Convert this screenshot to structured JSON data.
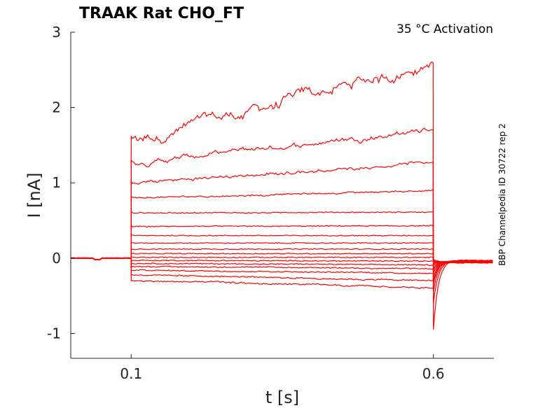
{
  "chart_data": {
    "type": "line",
    "title": "TRAAK  Rat  CHO_FT",
    "annotation": "35 °C  Activation",
    "side_label": "BBP Channelpedia ID 30722 rep 2",
    "xlabel": "t [s]",
    "ylabel": "I [nA]",
    "xlim": [
      0.0,
      0.7
    ],
    "ylim": [
      -1.33,
      3.0
    ],
    "x_ticks": [
      0.1,
      0.6
    ],
    "x_tick_labels": [
      "0.1",
      "0.6"
    ],
    "y_ticks": [
      -1,
      0,
      1,
      2,
      3
    ],
    "y_tick_labels": [
      "-1",
      "0",
      "1",
      "2",
      "3"
    ],
    "grid": false,
    "line_color": "#ff0000",
    "pulse_start": 0.1,
    "pulse_end": 0.6,
    "traces": [
      {
        "plateau_start": 1.58,
        "plateau_end": 2.6,
        "onset_peak": 1.62,
        "tail_min": -0.95
      },
      {
        "plateau_start": 1.27,
        "plateau_end": 1.72,
        "onset_peak": 1.3,
        "tail_min": -0.6
      },
      {
        "plateau_start": 1.0,
        "plateau_end": 1.28,
        "onset_peak": 1.02,
        "tail_min": -0.45
      },
      {
        "plateau_start": 0.8,
        "plateau_end": 0.9,
        "onset_peak": 0.82,
        "tail_min": -0.35
      },
      {
        "plateau_start": 0.6,
        "plateau_end": 0.61,
        "onset_peak": 0.62,
        "tail_min": -0.3
      },
      {
        "plateau_start": 0.42,
        "plateau_end": 0.43,
        "onset_peak": 0.44,
        "tail_min": -0.25
      },
      {
        "plateau_start": 0.3,
        "plateau_end": 0.3,
        "onset_peak": 0.31,
        "tail_min": -0.2
      },
      {
        "plateau_start": 0.2,
        "plateau_end": 0.2,
        "onset_peak": 0.21,
        "tail_min": -0.16
      },
      {
        "plateau_start": 0.12,
        "plateau_end": 0.12,
        "onset_peak": 0.13,
        "tail_min": -0.13
      },
      {
        "plateau_start": 0.06,
        "plateau_end": 0.06,
        "onset_peak": 0.07,
        "tail_min": -0.1
      },
      {
        "plateau_start": 0.01,
        "plateau_end": 0.01,
        "onset_peak": 0.02,
        "tail_min": -0.08
      },
      {
        "plateau_start": -0.03,
        "plateau_end": -0.04,
        "onset_peak": -0.05,
        "tail_min": -0.07
      },
      {
        "plateau_start": -0.07,
        "plateau_end": -0.09,
        "onset_peak": -0.09,
        "tail_min": -0.06
      },
      {
        "plateau_start": -0.11,
        "plateau_end": -0.14,
        "onset_peak": -0.13,
        "tail_min": -0.05
      },
      {
        "plateau_start": -0.16,
        "plateau_end": -0.2,
        "onset_peak": -0.17,
        "tail_min": -0.04
      },
      {
        "plateau_start": -0.22,
        "plateau_end": -0.3,
        "onset_peak": -0.22,
        "tail_min": -0.03
      },
      {
        "plateau_start": -0.3,
        "plateau_end": -0.4,
        "onset_peak": -0.3,
        "tail_min": -0.02
      }
    ]
  }
}
